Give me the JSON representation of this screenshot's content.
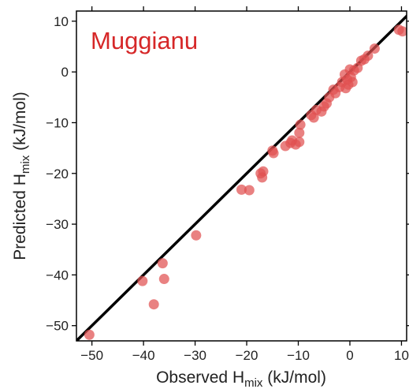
{
  "chart_data": {
    "type": "scatter",
    "title": "Muggianu",
    "title_color": "#d62728",
    "xlabel": {
      "main": "Observed H",
      "sub": "mix",
      "unit": " (kJ/mol)"
    },
    "ylabel": {
      "main": "Predicted H",
      "sub": "mix",
      "unit": " (kJ/mol)"
    },
    "xlim": [
      -53,
      11
    ],
    "ylim": [
      -53,
      12
    ],
    "x_ticks": [
      -50,
      -40,
      -30,
      -20,
      -10,
      0,
      10
    ],
    "y_ticks": [
      -50,
      -40,
      -30,
      -20,
      -10,
      0,
      10
    ],
    "x_tick_labels": [
      "−50",
      "−40",
      "−30",
      "−20",
      "−10",
      "0",
      "10"
    ],
    "y_tick_labels": [
      "−50",
      "−40",
      "−30",
      "−20",
      "−10",
      "0",
      "10"
    ],
    "grid": false,
    "reference_line": {
      "type": "y=x",
      "color": "#000000"
    },
    "point_color": "#e05050",
    "points": [
      {
        "x": -50.5,
        "y": -51.8
      },
      {
        "x": -40.2,
        "y": -41.2
      },
      {
        "x": -38.0,
        "y": -45.8
      },
      {
        "x": -36.3,
        "y": -37.7
      },
      {
        "x": -36.0,
        "y": -40.8
      },
      {
        "x": -29.8,
        "y": -32.2
      },
      {
        "x": -21.0,
        "y": -23.2
      },
      {
        "x": -19.5,
        "y": -23.3
      },
      {
        "x": -17.3,
        "y": -20.0
      },
      {
        "x": -17.0,
        "y": -20.8
      },
      {
        "x": -16.8,
        "y": -19.6
      },
      {
        "x": -15.0,
        "y": -15.5
      },
      {
        "x": -14.8,
        "y": -16.0
      },
      {
        "x": -12.5,
        "y": -14.6
      },
      {
        "x": -11.5,
        "y": -14.0
      },
      {
        "x": -11.2,
        "y": -13.5
      },
      {
        "x": -10.5,
        "y": -14.3
      },
      {
        "x": -9.8,
        "y": -12.0
      },
      {
        "x": -9.6,
        "y": -10.4
      },
      {
        "x": -9.8,
        "y": -13.8
      },
      {
        "x": -7.5,
        "y": -8.5
      },
      {
        "x": -7.0,
        "y": -9.0
      },
      {
        "x": -6.5,
        "y": -7.5
      },
      {
        "x": -5.5,
        "y": -7.8
      },
      {
        "x": -5.0,
        "y": -6.8
      },
      {
        "x": -4.5,
        "y": -6.2
      },
      {
        "x": -4.0,
        "y": -5.0
      },
      {
        "x": -3.2,
        "y": -3.5
      },
      {
        "x": -2.8,
        "y": -4.2
      },
      {
        "x": -2.0,
        "y": -3.0
      },
      {
        "x": -1.5,
        "y": -2.0
      },
      {
        "x": -1.0,
        "y": -0.5
      },
      {
        "x": -0.8,
        "y": -3.2
      },
      {
        "x": -0.5,
        "y": -1.5
      },
      {
        "x": -0.3,
        "y": -2.5
      },
      {
        "x": 0.0,
        "y": 0.5
      },
      {
        "x": 0.2,
        "y": -1.0
      },
      {
        "x": 0.5,
        "y": -2.0
      },
      {
        "x": 0.8,
        "y": 0.3
      },
      {
        "x": 1.5,
        "y": 0.8
      },
      {
        "x": 2.2,
        "y": 2.2
      },
      {
        "x": 2.8,
        "y": 2.5
      },
      {
        "x": 3.5,
        "y": 3.2
      },
      {
        "x": 4.8,
        "y": 4.6
      },
      {
        "x": 9.5,
        "y": 8.3
      },
      {
        "x": 10.2,
        "y": 8.0
      }
    ]
  }
}
